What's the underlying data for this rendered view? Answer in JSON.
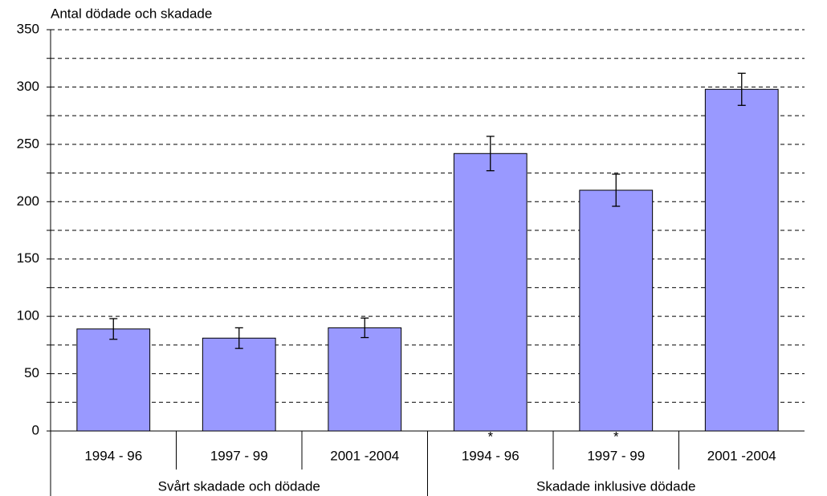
{
  "chart_data": {
    "type": "bar",
    "y_label": "Antal dödade och skadade",
    "categories": [
      "1994 - 96",
      "1997 - 99",
      "2001 -2004",
      "1994 - 96",
      "1997 - 99",
      "2001 -2004"
    ],
    "category_notes": [
      null,
      null,
      null,
      "*",
      "*",
      null
    ],
    "groups": [
      {
        "label": "Svårt skadade och dödade",
        "size": 3
      },
      {
        "label": "Skadade inklusive dödade",
        "size": 3
      }
    ],
    "values": [
      89,
      81,
      90,
      242,
      210,
      298
    ],
    "errors": [
      9,
      9,
      8.5,
      15,
      14,
      14
    ],
    "color": "#9999ff",
    "ylim": [
      0,
      350
    ],
    "yticks": [
      0,
      50,
      100,
      150,
      200,
      250,
      300,
      350
    ],
    "minor_yticks": [
      25,
      75,
      125,
      175,
      225,
      275,
      325
    ],
    "grid": true
  }
}
